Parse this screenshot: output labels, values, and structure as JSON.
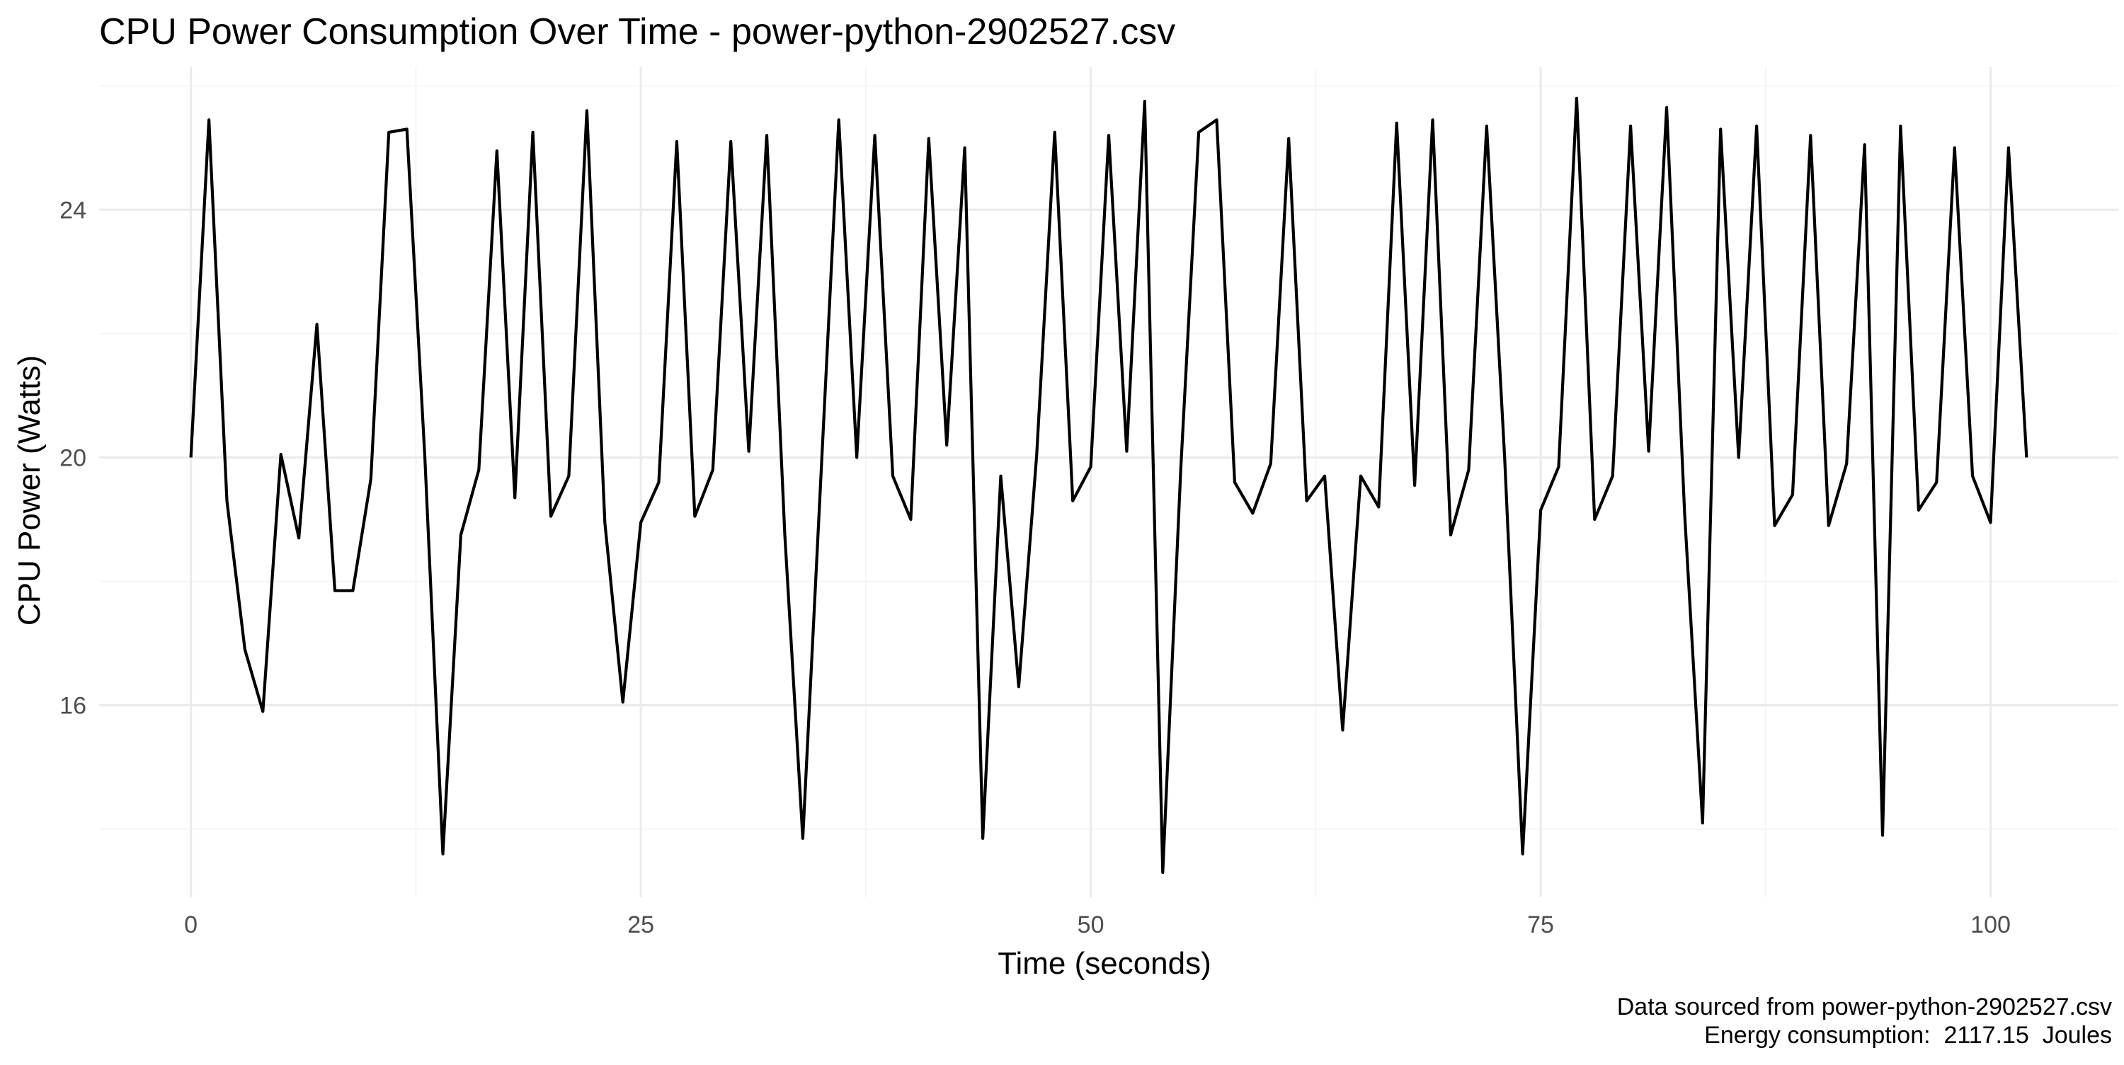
{
  "chart_data": {
    "type": "line",
    "title": "CPU Power Consumption Over Time - power-python-2902527.csv",
    "xlabel": "Time (seconds)",
    "ylabel": "CPU Power (Watts)",
    "caption_lines": [
      "Data sourced from power-python-2902527.csv",
      "Energy consumption:  2117.15  Joules"
    ],
    "xlim": [
      -5.1,
      107.1
    ],
    "ylim": [
      12.9,
      26.3
    ],
    "x_major_ticks": [
      0,
      25,
      50,
      75,
      100
    ],
    "x_tick_labels": [
      "0",
      "25",
      "50",
      "75",
      "100"
    ],
    "x_minor_ticks": [
      12.5,
      37.5,
      62.5,
      87.5
    ],
    "y_major_ticks": [
      16,
      20,
      24
    ],
    "y_tick_labels": [
      "16",
      "20",
      "24"
    ],
    "y_minor_ticks": [
      14,
      18,
      22,
      26
    ],
    "grid": true,
    "legend": "none",
    "line_color": "#000000",
    "series": [
      {
        "x": [
          0,
          1,
          2,
          3,
          4,
          5,
          6,
          7,
          8,
          9,
          10,
          11,
          12,
          13,
          14,
          15,
          16,
          17,
          18,
          19,
          20,
          21,
          22,
          23,
          24,
          25,
          26,
          27,
          28,
          29,
          30,
          31,
          32,
          33,
          34,
          35,
          36,
          37,
          38,
          39,
          40,
          41,
          42,
          43,
          44,
          45,
          46,
          47,
          48,
          49,
          50,
          51,
          52,
          53,
          54,
          55,
          56,
          57,
          58,
          59,
          60,
          61,
          62,
          63,
          64,
          65,
          66,
          67,
          68,
          69,
          70,
          71,
          72,
          73,
          74,
          75,
          76,
          77,
          78,
          79,
          80,
          81,
          82,
          83,
          84,
          85,
          86,
          87,
          88,
          89,
          90,
          91,
          92,
          93,
          94,
          95,
          96,
          97,
          98,
          99,
          100,
          101,
          102
        ],
        "y": [
          20.0,
          25.45,
          19.3,
          16.9,
          15.9,
          20.05,
          18.7,
          22.15,
          17.85,
          17.85,
          19.65,
          25.25,
          25.3,
          20.0,
          13.6,
          18.75,
          19.8,
          24.95,
          19.35,
          25.25,
          19.05,
          19.7,
          25.6,
          18.95,
          16.05,
          18.95,
          19.6,
          25.1,
          19.05,
          19.8,
          25.1,
          20.1,
          25.2,
          18.75,
          13.85,
          19.65,
          25.45,
          20.0,
          25.2,
          19.7,
          19.0,
          25.15,
          20.2,
          25.0,
          13.85,
          19.7,
          16.3,
          20.05,
          25.25,
          19.3,
          19.85,
          25.2,
          20.1,
          25.75,
          13.3,
          19.8,
          25.25,
          25.45,
          19.6,
          19.1,
          19.9,
          25.15,
          19.3,
          19.7,
          15.6,
          19.7,
          19.2,
          25.4,
          19.55,
          25.45,
          18.75,
          19.8,
          25.35,
          20.0,
          13.6,
          19.15,
          19.85,
          25.8,
          19.0,
          19.7,
          25.35,
          20.1,
          25.65,
          19.1,
          14.1,
          25.3,
          20.0,
          25.35,
          18.9,
          19.4,
          25.2,
          18.9,
          19.9,
          25.05,
          13.9,
          25.35,
          19.15,
          19.6,
          25.0,
          19.7,
          18.95,
          25.0,
          20.0
        ]
      }
    ]
  }
}
